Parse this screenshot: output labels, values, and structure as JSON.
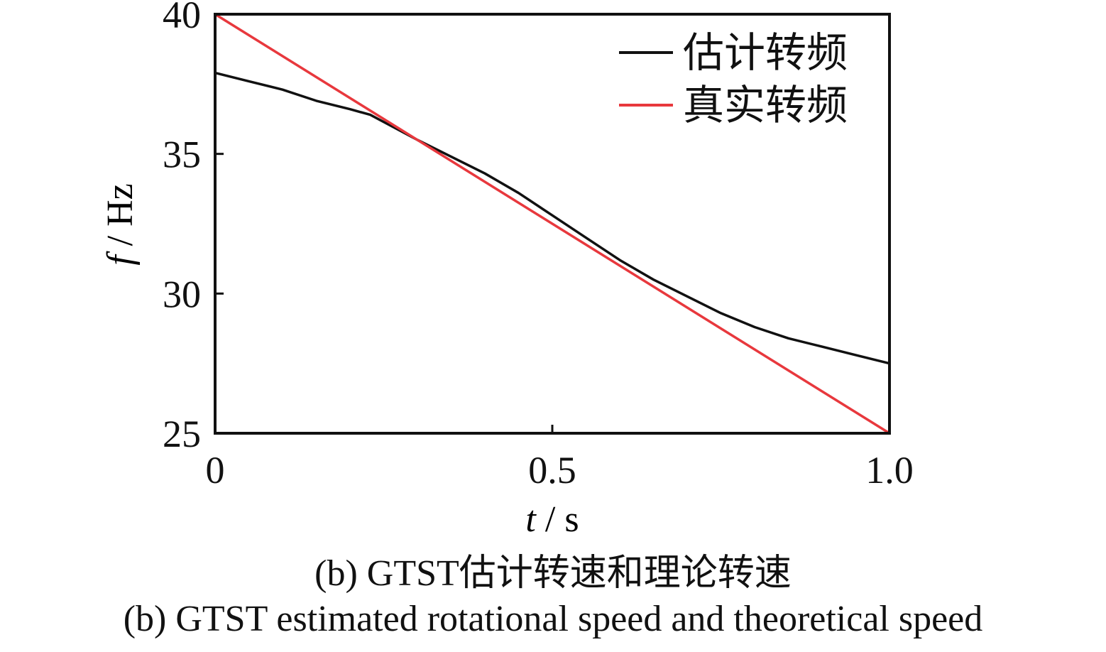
{
  "chart_data": {
    "type": "line",
    "xlabel_var": "t",
    "xlabel_unit": " / s",
    "ylabel_var": "f",
    "ylabel_unit": " / Hz",
    "xlim": [
      0,
      1.0
    ],
    "ylim": [
      25,
      40
    ],
    "xticks": [
      0,
      0.5,
      1.0
    ],
    "xtick_labels": [
      "0",
      "0.5",
      "1.0"
    ],
    "yticks": [
      25,
      30,
      35,
      40
    ],
    "ytick_labels": [
      "25",
      "30",
      "35",
      "40"
    ],
    "legend_position": "top-right",
    "series": [
      {
        "name": "估计转频",
        "color": "#111111",
        "x": [
          0,
          0.05,
          0.1,
          0.15,
          0.2,
          0.23,
          0.3,
          0.35,
          0.4,
          0.45,
          0.5,
          0.55,
          0.6,
          0.65,
          0.7,
          0.75,
          0.8,
          0.85,
          0.9,
          0.95,
          1.0
        ],
        "y": [
          37.9,
          37.6,
          37.3,
          36.9,
          36.6,
          36.4,
          35.5,
          34.9,
          34.3,
          33.6,
          32.8,
          32.0,
          31.2,
          30.5,
          29.9,
          29.3,
          28.8,
          28.4,
          28.1,
          27.8,
          27.5
        ]
      },
      {
        "name": "真实转频",
        "color": "#e8383d",
        "x": [
          0,
          1.0
        ],
        "y": [
          40,
          25
        ]
      }
    ]
  },
  "captions": {
    "cn": "(b)  GTST估计转速和理论转速",
    "en": "(b)  GTST estimated rotational speed and theoretical speed"
  }
}
